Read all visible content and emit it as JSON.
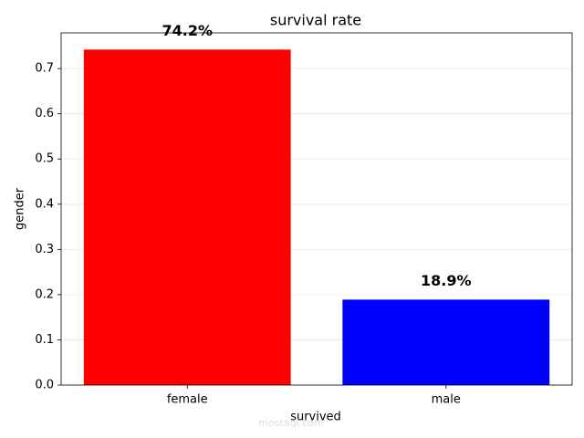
{
  "chart_data": {
    "type": "bar",
    "title": "survival rate",
    "x_label": "survived",
    "y_label": "gender",
    "categories": [
      "female",
      "male"
    ],
    "values": [
      0.742,
      0.189
    ],
    "value_labels": [
      "74.2%",
      "18.9%"
    ],
    "colors": [
      "#ff0000",
      "#0000ff"
    ],
    "ylim": [
      0,
      0.779
    ],
    "yticks": [
      {
        "value": 0,
        "label": "0.0"
      },
      0.1,
      0.2,
      0.3,
      0.4,
      0.5,
      0.6,
      0.7
    ],
    "grid": true,
    "watermark": "mostaql.com"
  }
}
